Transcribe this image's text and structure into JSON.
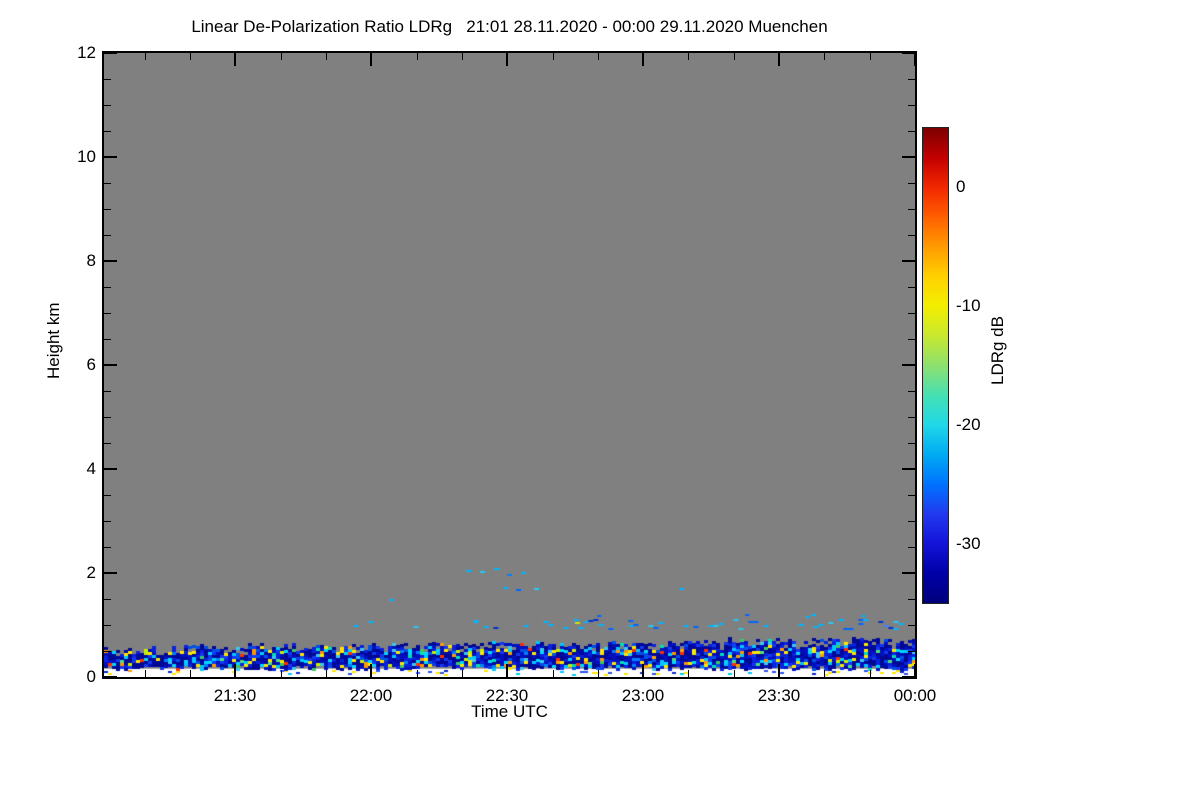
{
  "colors": {
    "no_data": "#808080",
    "frame": "#000000",
    "page_background": "#ffffff"
  },
  "chart_data": {
    "type": "heatmap",
    "title": "Linear De-Polarization Ratio LDRg   21:01 28.11.2020 - 00:00 29.11.2020 Muenchen",
    "xlabel": "Time UTC",
    "ylabel": "Height km",
    "station": "Muenchen",
    "time_start": "21:01 28.11.2020",
    "time_end": "00:00 29.11.2020",
    "x_axis": {
      "start_minute": 0,
      "end_minute": 179,
      "major_ticks": [
        {
          "minute": 29,
          "label": "21:30"
        },
        {
          "minute": 59,
          "label": "22:00"
        },
        {
          "minute": 89,
          "label": "22:30"
        },
        {
          "minute": 119,
          "label": "23:00"
        },
        {
          "minute": 149,
          "label": "23:30"
        },
        {
          "minute": 179,
          "label": "00:00"
        }
      ],
      "minor_tick_minutes": [
        9,
        19,
        39,
        49,
        69,
        79,
        99,
        109,
        129,
        139,
        159,
        169
      ]
    },
    "y_axis": {
      "min": 0,
      "max": 12,
      "major_ticks": [
        {
          "value": 0,
          "label": "0"
        },
        {
          "value": 2,
          "label": "2"
        },
        {
          "value": 4,
          "label": "4"
        },
        {
          "value": 6,
          "label": "6"
        },
        {
          "value": 8,
          "label": "8"
        },
        {
          "value": 10,
          "label": "10"
        },
        {
          "value": 12,
          "label": "12"
        }
      ],
      "minor_tick_step": 0.5
    },
    "colorbar": {
      "label": "LDRg dB",
      "value_top": 5,
      "value_bottom": -35,
      "major_ticks": [
        {
          "value": 0,
          "label": "0"
        },
        {
          "value": -10,
          "label": "-10"
        },
        {
          "value": -20,
          "label": "-20"
        },
        {
          "value": -30,
          "label": "-30"
        }
      ],
      "minor_tick_step": 2,
      "gradient_stops": [
        [
          0,
          "#7c0000"
        ],
        [
          6.3,
          "#c40000"
        ],
        [
          12.6,
          "#f22800"
        ],
        [
          18.9,
          "#ff6000"
        ],
        [
          25.2,
          "#ff9c00"
        ],
        [
          31.4,
          "#ffd200"
        ],
        [
          37.5,
          "#f2ee00"
        ],
        [
          43.8,
          "#c8e830"
        ],
        [
          50.1,
          "#8ce070"
        ],
        [
          56.4,
          "#44e0b4"
        ],
        [
          62.5,
          "#20d8e8"
        ],
        [
          68.8,
          "#00aaf2"
        ],
        [
          75.1,
          "#0072ff"
        ],
        [
          81.4,
          "#2238ee"
        ],
        [
          87.5,
          "#1414d8"
        ],
        [
          93.8,
          "#0000a8"
        ],
        [
          100,
          "#00007b"
        ]
      ]
    },
    "no_data_color": "#808080",
    "random_seed": 1234,
    "layers": [
      {
        "name": "lowest-gates-white-band",
        "type": "rect",
        "t0": 0,
        "t1": 179,
        "h0": 0.0,
        "h1": 0.16,
        "color": "#ffffff"
      },
      {
        "name": "ground-gate-dots",
        "type": "speckle",
        "t0": 0,
        "t1": 179,
        "h0": 0.06,
        "h1": 0.14,
        "density": 0.12,
        "cw": 4,
        "ch": 2,
        "palette": [
          [
            "#ffe800",
            0.5
          ],
          [
            "#2b50f0",
            0.2
          ],
          [
            "#00c8ff",
            0.15
          ],
          [
            "#ff9800",
            0.05
          ],
          [
            "#0a28c8",
            0.1
          ]
        ]
      },
      {
        "name": "boundary-layer",
        "type": "band",
        "t0": 0,
        "t1": 179,
        "h_base": 0.16,
        "base_jitter": 0.05,
        "top_start": 0.52,
        "top_end": 0.7,
        "top_jitter": 0.05,
        "cw": 4,
        "ch": 3,
        "gap_prob_top": 0.3,
        "palette": [
          [
            "#000896",
            0.4
          ],
          [
            "#0010c0",
            0.2
          ],
          [
            "#0a22dd",
            0.12
          ],
          [
            "#1438f0",
            0.08
          ],
          [
            "#0050e8",
            0.05
          ],
          [
            "#00c8ff",
            0.045
          ],
          [
            "#00e0b0",
            0.012
          ],
          [
            "#ffe800",
            0.035
          ],
          [
            "#ffa000",
            0.012
          ],
          [
            "#ff3000",
            0.013
          ],
          [
            "#40c860",
            0.01
          ],
          [
            "#3cc8f0",
            0.023
          ]
        ],
        "accent_rows": [
          {
            "h": 0.45,
            "prob": 0.4
          },
          {
            "h": 0.28,
            "prob": 0.25
          },
          {
            "h": 0.2,
            "prob": 0.2
          }
        ],
        "accent_palette": [
          [
            "#00d8ff",
            0.32
          ],
          [
            "#ffe800",
            0.22
          ],
          [
            "#50e080",
            0.12
          ],
          [
            "#ff9800",
            0.09
          ],
          [
            "#ff3000",
            0.05
          ],
          [
            "#0080ff",
            0.12
          ],
          [
            "#c8f000",
            0.08
          ]
        ]
      },
      {
        "name": "one-km-layer",
        "type": "speckle",
        "t0": 44,
        "t1": 179,
        "h0": 0.93,
        "h1": 1.12,
        "density_start": 0.05,
        "density_end": 0.38,
        "cw": 5,
        "ch": 2,
        "palette": [
          [
            "#00b4ff",
            0.42
          ],
          [
            "#0064ff",
            0.22
          ],
          [
            "#0032d2",
            0.14
          ],
          [
            "#28c8f0",
            0.1
          ],
          [
            "#00dcb4",
            0.05
          ],
          [
            "#3c82ff",
            0.05
          ],
          [
            "#ff8c00",
            0.01
          ],
          [
            "#f03200",
            0.01
          ]
        ]
      },
      {
        "name": "upper-sparse-dots",
        "type": "speckle",
        "t0": 55,
        "t1": 175,
        "h0": 1.15,
        "h1": 1.32,
        "density": 0.025,
        "cw": 4,
        "ch": 2,
        "palette": [
          [
            "#00b4ff",
            0.6
          ],
          [
            "#0064ff",
            0.4
          ]
        ]
      },
      {
        "name": "high-isolated-dots",
        "type": "dots",
        "cw": 5,
        "ch": 2,
        "dots": [
          [
            80,
            2.06,
            "#00b4ff"
          ],
          [
            83,
            2.03,
            "#28c8f0"
          ],
          [
            86,
            2.09,
            "#00b4ff"
          ],
          [
            89,
            1.99,
            "#0080ff"
          ],
          [
            92,
            2.02,
            "#00b4ff"
          ],
          [
            88,
            1.73,
            "#00b4ff"
          ],
          [
            91,
            1.7,
            "#0064ff"
          ],
          [
            95,
            1.72,
            "#28c8f0"
          ],
          [
            127,
            1.72,
            "#00b4ff"
          ],
          [
            156,
            1.22,
            "#00b4ff"
          ],
          [
            104,
            1.06,
            "#c8e800"
          ],
          [
            63,
            1.5,
            "#00b4ff"
          ]
        ]
      }
    ]
  }
}
